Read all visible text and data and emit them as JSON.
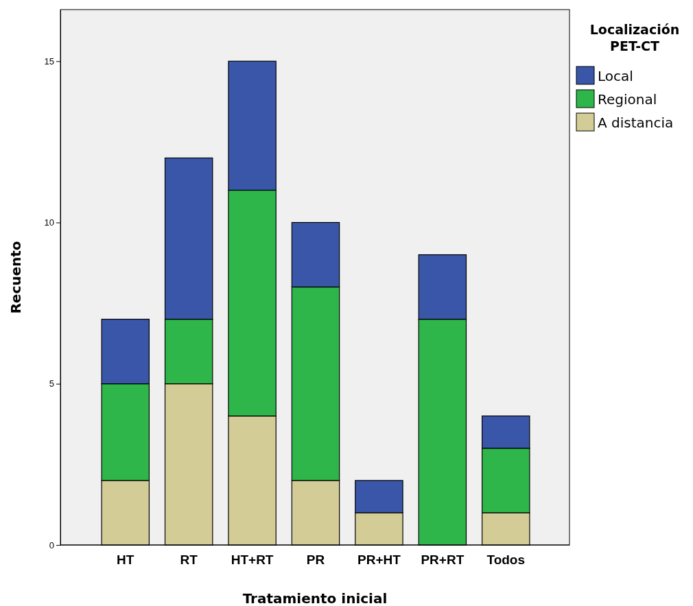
{
  "chart_data": {
    "type": "bar",
    "stacked": true,
    "xlabel": "Tratamiento inicial",
    "ylabel": "Recuento",
    "legend_title": "Localización PET-CT",
    "categories": [
      "HT",
      "RT",
      "HT+RT",
      "PR",
      "PR+HT",
      "PR+RT",
      "Todos"
    ],
    "series": [
      {
        "name": "A distancia",
        "color": "#d4cc96",
        "values": [
          2,
          5,
          4,
          2,
          1,
          0,
          1
        ]
      },
      {
        "name": "Regional",
        "color": "#2fb64a",
        "values": [
          3,
          2,
          7,
          6,
          0,
          7,
          2
        ]
      },
      {
        "name": "Local",
        "color": "#3a56a8",
        "values": [
          2,
          5,
          4,
          2,
          1,
          2,
          1
        ]
      }
    ],
    "ylim": [
      0,
      16.6
    ],
    "yticks": [
      0,
      5,
      10,
      15
    ],
    "grid": false,
    "legend": "top right"
  }
}
